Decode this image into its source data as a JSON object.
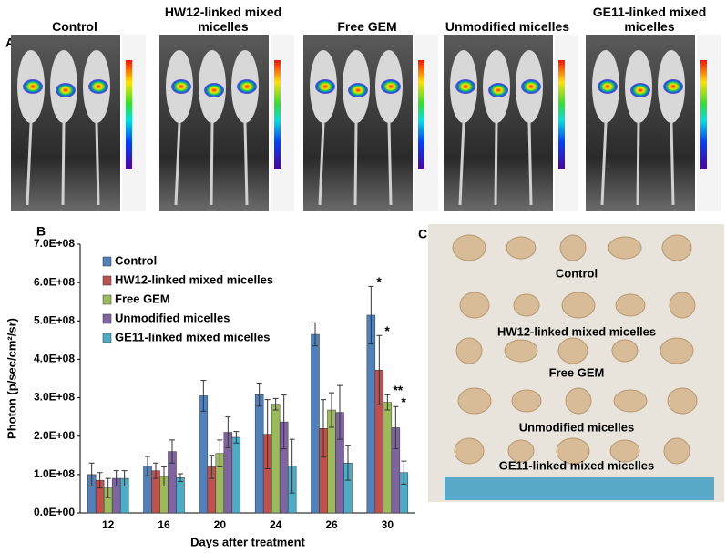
{
  "panel_labels": [
    "A",
    "B",
    "C"
  ],
  "imaging": {
    "groups": [
      "Control",
      "HW12-linked mixed micelles",
      "Free GEM",
      "Unmodified micelles",
      "GE11-linked mixed micelles"
    ]
  },
  "tumor_photo": {
    "labels": [
      "Control",
      "HW12-linked mixed micelles",
      "Free GEM",
      "Unmodified micelles",
      "GE11-linked mixed micelles"
    ]
  },
  "chart_data": {
    "type": "bar",
    "categories": [
      "12",
      "16",
      "20",
      "24",
      "26",
      "30"
    ],
    "series": [
      {
        "name": "Control",
        "color": "#4f81bd",
        "values": [
          100000000,
          122000000,
          305000000,
          308000000,
          465000000,
          515000000
        ],
        "errors": [
          30000000,
          25000000,
          40000000,
          30000000,
          30000000,
          75000000
        ],
        "significance": [
          null,
          null,
          null,
          null,
          null,
          "*"
        ]
      },
      {
        "name": "HW12-linked mixed micelles",
        "color": "#c0504d",
        "values": [
          85000000,
          110000000,
          120000000,
          205000000,
          220000000,
          372000000
        ],
        "errors": [
          20000000,
          20000000,
          30000000,
          90000000,
          75000000,
          90000000
        ],
        "significance": [
          null,
          null,
          null,
          null,
          null,
          "*"
        ]
      },
      {
        "name": "Free GEM",
        "color": "#9bbb59",
        "values": [
          65000000,
          95000000,
          155000000,
          283000000,
          268000000,
          288000000
        ],
        "errors": [
          25000000,
          25000000,
          35000000,
          15000000,
          45000000,
          20000000
        ],
        "significance": [
          null,
          null,
          null,
          null,
          null,
          "**"
        ]
      },
      {
        "name": "Unmodified micelles",
        "color": "#8064a2",
        "values": [
          90000000,
          160000000,
          210000000,
          237000000,
          262000000,
          222000000
        ],
        "errors": [
          20000000,
          30000000,
          40000000,
          70000000,
          70000000,
          55000000
        ],
        "significance": [
          null,
          null,
          null,
          null,
          null,
          "*"
        ]
      },
      {
        "name": "GE11-linked mixed micelles",
        "color": "#4bacc6",
        "values": [
          90000000,
          92000000,
          197000000,
          122000000,
          130000000,
          105000000
        ],
        "errors": [
          20000000,
          10000000,
          15000000,
          70000000,
          45000000,
          30000000
        ]
      }
    ],
    "xlabel": "Days after treatment",
    "ylabel": "Photon (p/sec/cm²/sr)",
    "ylim": [
      0,
      700000000
    ],
    "yticks": [
      {
        "value": 0,
        "label": "0.0E+00"
      },
      {
        "value": 100000000,
        "label": "1.0E+08"
      },
      {
        "value": 200000000,
        "label": "2.0E+08"
      },
      {
        "value": 300000000,
        "label": "3.0E+08"
      },
      {
        "value": 400000000,
        "label": "4.0E+08"
      },
      {
        "value": 500000000,
        "label": "5.0E+08"
      },
      {
        "value": 600000000,
        "label": "6.0E+08"
      },
      {
        "value": 700000000,
        "label": "7.0E+08"
      }
    ],
    "legend": "top-left"
  }
}
